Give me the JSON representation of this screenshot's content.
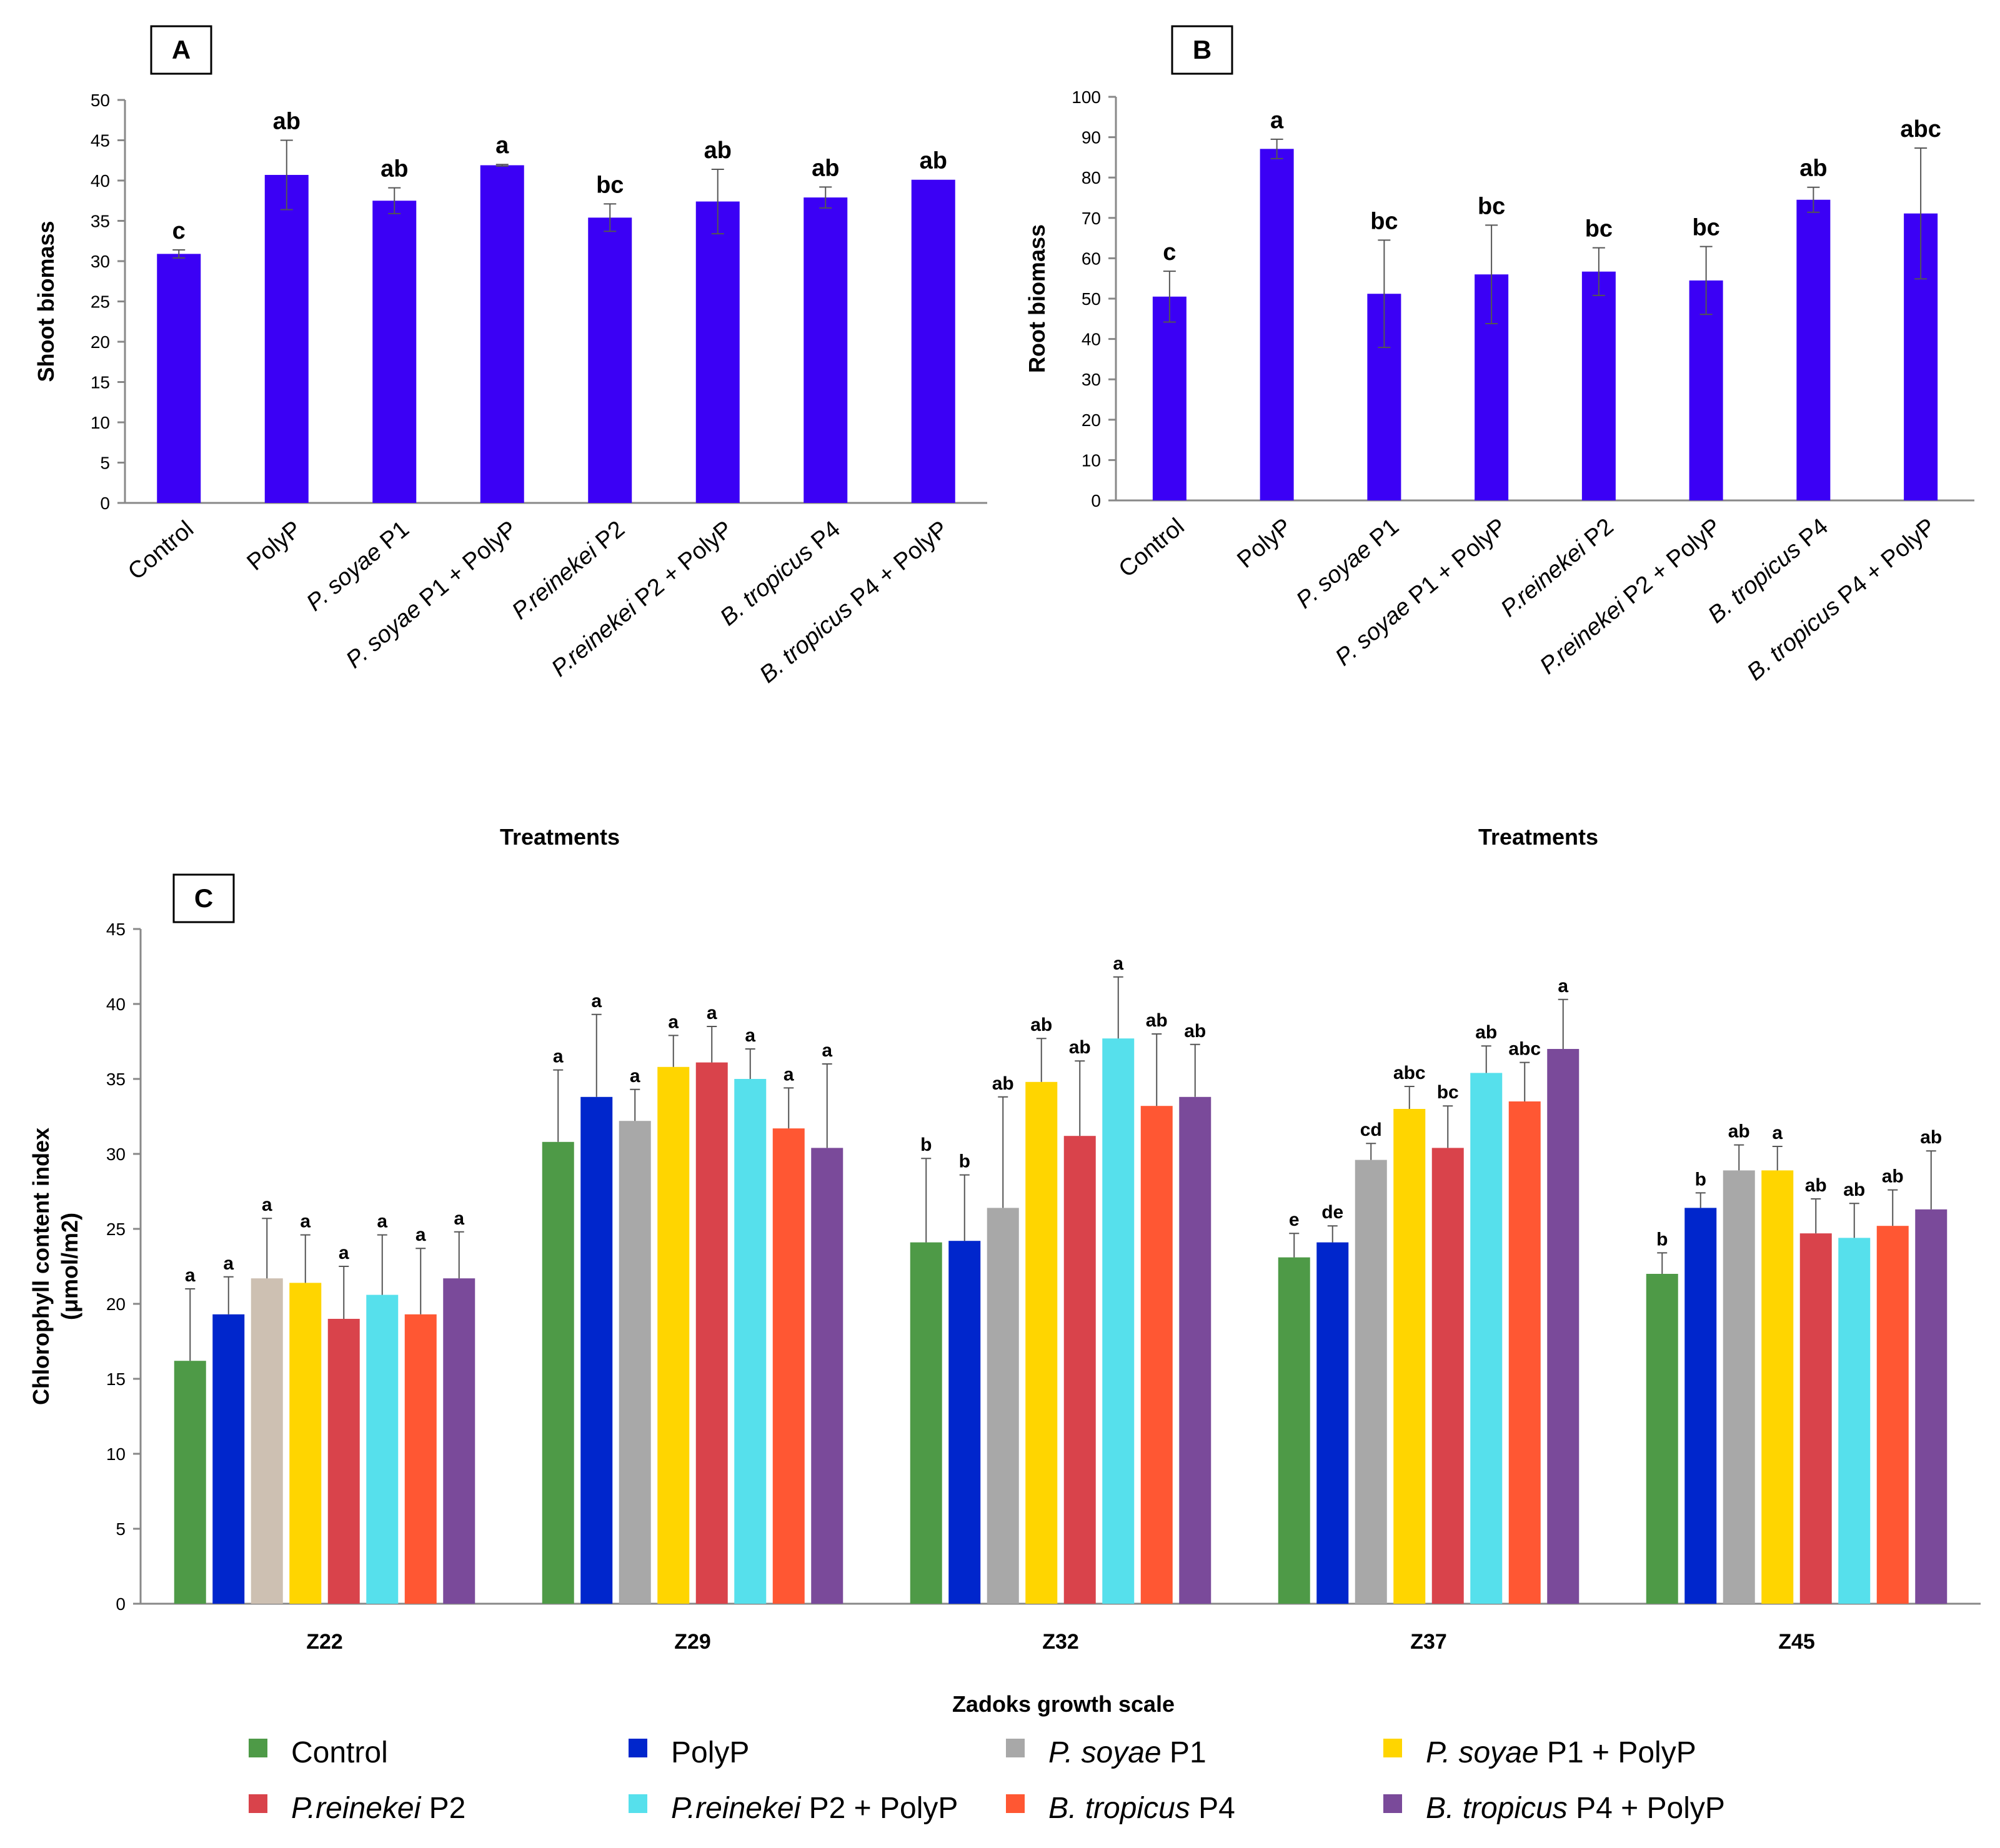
{
  "colors": {
    "bar_ab": "#3B00F5",
    "series": [
      "#4E9A47",
      "#0026CC",
      "#A8A8A8",
      "#FFD500",
      "#D9434B",
      "#56E0EC",
      "#FF5733",
      "#7A4A9A"
    ],
    "series_Z22_PSoyaeP1": "#CDC0B2"
  },
  "chart_data": [
    {
      "id": "A",
      "panel_label": "A",
      "type": "bar",
      "title": "",
      "xlabel": "Treatments",
      "ylabel": "Shoot biomass",
      "ylim": [
        0,
        50
      ],
      "yticks": [
        "0",
        "5",
        "10",
        "15",
        "20",
        "25",
        "30",
        "35",
        "40",
        "45",
        "50"
      ],
      "categories": [
        {
          "italic": "",
          "plain": "Control"
        },
        {
          "italic": "",
          "plain": "PolyP"
        },
        {
          "italic": "P. soyae",
          "plain": " P1"
        },
        {
          "italic": "P. soyae",
          "plain": " P1 + PolyP"
        },
        {
          "italic": "P.reinekei",
          "plain": " P2"
        },
        {
          "italic": "P.reinekei",
          "plain": " P2 + PolyP"
        },
        {
          "italic": "B. tropicus",
          "plain": " P4"
        },
        {
          "italic": "B. tropicus",
          "plain": " P4 + PolyP"
        }
      ],
      "values": [
        30.9,
        40.7,
        37.5,
        41.9,
        35.4,
        37.4,
        37.9,
        40.1
      ],
      "errors": [
        0.5,
        4.3,
        1.6,
        0.1,
        1.7,
        4.0,
        1.3,
        0.0
      ],
      "significance": [
        "c",
        "ab",
        "ab",
        "a",
        "bc",
        "ab",
        "ab",
        "ab"
      ]
    },
    {
      "id": "B",
      "panel_label": "B",
      "type": "bar",
      "title": "",
      "xlabel": "Treatments",
      "ylabel": "Root biomass",
      "ylim": [
        0,
        100
      ],
      "yticks": [
        "0",
        "10",
        "20",
        "30",
        "40",
        "50",
        "60",
        "70",
        "80",
        "90",
        "100"
      ],
      "categories": [
        {
          "italic": "",
          "plain": "Control"
        },
        {
          "italic": "",
          "plain": "PolyP"
        },
        {
          "italic": "P. soyae",
          "plain": " P1"
        },
        {
          "italic": "P. soyae",
          "plain": " P1 + PolyP"
        },
        {
          "italic": "P.reinekei",
          "plain": " P2"
        },
        {
          "italic": "P.reinekei",
          "plain": " P2 + PolyP"
        },
        {
          "italic": "B. tropicus",
          "plain": " P4"
        },
        {
          "italic": "B. tropicus",
          "plain": " P4 + PolyP"
        }
      ],
      "values": [
        50.5,
        87.1,
        51.2,
        56.0,
        56.7,
        54.5,
        74.5,
        71.1
      ],
      "errors": [
        6.3,
        2.4,
        13.3,
        12.2,
        5.9,
        8.4,
        3.1,
        16.2
      ],
      "significance": [
        "c",
        "a",
        "bc",
        "bc",
        "bc",
        "bc",
        "ab",
        "abc"
      ]
    },
    {
      "id": "C",
      "panel_label": "C",
      "type": "bar",
      "title": "",
      "xlabel": "Zadoks growth scale",
      "ylabel": "Chlorophyll content index",
      "ylabel2": "(μmol/m2)",
      "ylim": [
        0,
        45
      ],
      "yticks": [
        "0",
        "5",
        "10",
        "15",
        "20",
        "25",
        "30",
        "35",
        "40",
        "45"
      ],
      "categories": [
        "Z22",
        "Z29",
        "Z32",
        "Z37",
        "Z45"
      ],
      "series": [
        {
          "italic": "",
          "plain": "Control",
          "values": [
            16.2,
            30.8,
            24.1,
            23.1,
            22.0
          ],
          "errors": [
            4.8,
            4.8,
            5.6,
            1.6,
            1.4
          ],
          "significance": [
            "a",
            "a",
            "b",
            "e",
            "b"
          ]
        },
        {
          "italic": "",
          "plain": "PolyP",
          "values": [
            19.3,
            33.8,
            24.2,
            24.1,
            26.4
          ],
          "errors": [
            2.5,
            5.5,
            4.4,
            1.1,
            1.0
          ],
          "significance": [
            "a",
            "a",
            "b",
            "de",
            "b"
          ]
        },
        {
          "italic": "P. soyae",
          "plain": " P1",
          "values": [
            21.7,
            32.2,
            26.4,
            29.6,
            28.9
          ],
          "errors": [
            4.0,
            2.1,
            7.4,
            1.1,
            1.7
          ],
          "significance": [
            "a",
            "a",
            "ab",
            "cd",
            "ab"
          ]
        },
        {
          "italic": "P. soyae",
          "plain": " P1 + PolyP",
          "values": [
            21.4,
            35.8,
            34.8,
            33.0,
            28.9
          ],
          "errors": [
            3.2,
            2.1,
            2.9,
            1.5,
            1.6
          ],
          "significance": [
            "a",
            "a",
            "ab",
            "abc",
            "a"
          ]
        },
        {
          "italic": "P.reinekei",
          "plain": " P2",
          "values": [
            19.0,
            36.1,
            31.2,
            30.4,
            24.7
          ],
          "errors": [
            3.5,
            2.4,
            5.0,
            2.8,
            2.3
          ],
          "significance": [
            "a",
            "a",
            "ab",
            "bc",
            "ab"
          ]
        },
        {
          "italic": "P.reinekei",
          "plain": " P2 + PolyP",
          "values": [
            20.6,
            35.0,
            37.7,
            35.4,
            24.4
          ],
          "errors": [
            4.0,
            2.0,
            4.1,
            1.8,
            2.3
          ],
          "significance": [
            "a",
            "a",
            "a",
            "ab",
            "ab"
          ]
        },
        {
          "italic": "B. tropicus",
          "plain": " P4",
          "values": [
            19.3,
            31.7,
            33.2,
            33.5,
            25.2
          ],
          "errors": [
            4.4,
            2.7,
            4.8,
            2.6,
            2.4
          ],
          "significance": [
            "a",
            "a",
            "ab",
            "abc",
            "ab"
          ]
        },
        {
          "italic": "B. tropicus",
          "plain": " P4 + PolyP",
          "values": [
            21.7,
            30.4,
            33.8,
            37.0,
            26.3
          ],
          "errors": [
            3.1,
            5.6,
            3.5,
            3.3,
            3.9
          ],
          "significance": [
            "a",
            "a",
            "ab",
            "a",
            "ab"
          ]
        }
      ]
    }
  ]
}
